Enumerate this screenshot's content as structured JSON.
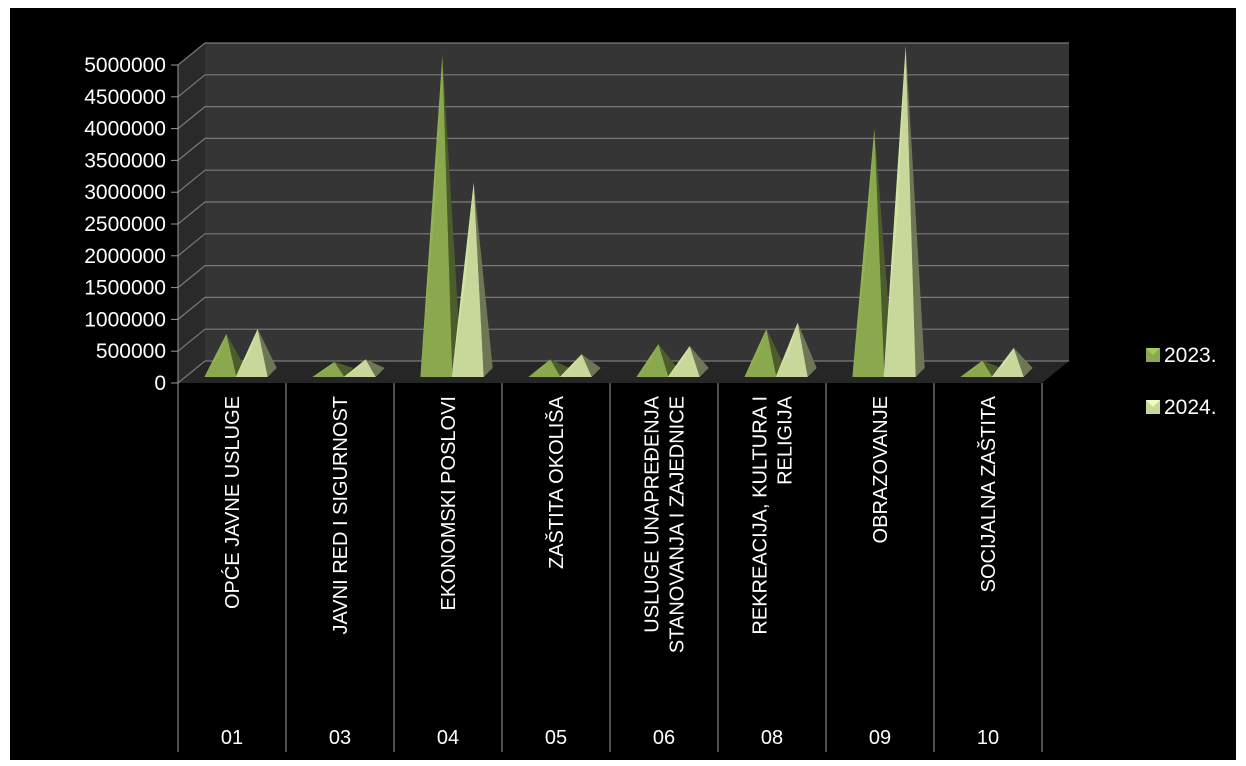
{
  "chart_data": {
    "type": "bar",
    "style": "3d-pyramid",
    "categories": [
      {
        "code": "01",
        "label": "OPĆE JAVNE USLUGE"
      },
      {
        "code": "03",
        "label": "JAVNI RED I SIGURNOST"
      },
      {
        "code": "04",
        "label": "EKONOMSKI POSLOVI"
      },
      {
        "code": "05",
        "label": "ZAŠTITA OKOLIŠA"
      },
      {
        "code": "06",
        "label": "USLUGE UNAPREĐENJA STANOVANJA I ZAJEDNICE"
      },
      {
        "code": "08",
        "label": "REKREACIJA, KULTURA I RELIGIJA"
      },
      {
        "code": "09",
        "label": "OBRAZOVANJE"
      },
      {
        "code": "10",
        "label": "SOCIJALNA ZAŠTITA"
      }
    ],
    "series": [
      {
        "name": "2023.",
        "color": "#8aa84e",
        "values": [
          520000,
          80000,
          4900000,
          120000,
          360000,
          600000,
          3750000,
          100000
        ]
      },
      {
        "name": "2024.",
        "color": "#c7d89a",
        "values": [
          600000,
          120000,
          2900000,
          200000,
          330000,
          700000,
          5050000,
          300000
        ]
      }
    ],
    "y_ticks": [
      "0",
      "500000",
      "1000000",
      "1500000",
      "2000000",
      "2500000",
      "3000000",
      "3500000",
      "4000000",
      "4500000",
      "5000000"
    ],
    "ylim": [
      0,
      5000000
    ],
    "grid": true,
    "legend_position": "right"
  }
}
